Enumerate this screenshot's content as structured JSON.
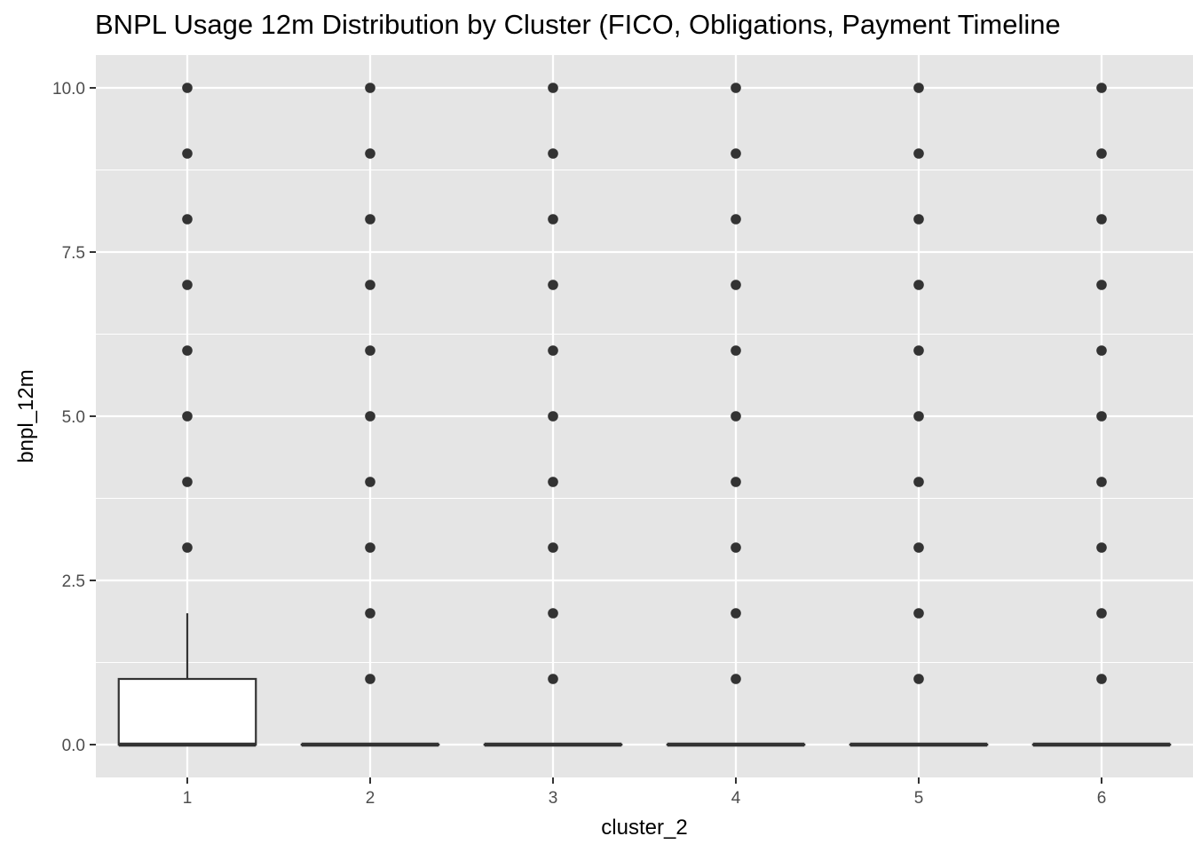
{
  "chart_data": {
    "type": "box",
    "title": "BNPL Usage 12m Distribution by Cluster (FICO, Obligations, Payment Timeline",
    "xlabel": "cluster_2",
    "ylabel": "bnpl_12m",
    "categories": [
      "1",
      "2",
      "3",
      "4",
      "5",
      "6"
    ],
    "ylim": [
      -0.5,
      10.5
    ],
    "yticks": [
      0,
      2.5,
      5,
      7.5,
      10
    ],
    "ytick_labels": [
      "0.0",
      "2.5",
      "5.0",
      "7.5",
      "10.0"
    ],
    "grid": true,
    "legend": "none",
    "colors": {
      "panel": "#e5e5e5",
      "grid": "#ffffff",
      "ink": "#333333",
      "box_fill": "#ffffff"
    },
    "boxes": [
      {
        "category": "1",
        "q1": 0,
        "median": 0,
        "q3": 1,
        "whisker_low": 0,
        "whisker_high": 2,
        "outliers": [
          3,
          4,
          5,
          6,
          7,
          8,
          9,
          10
        ]
      },
      {
        "category": "2",
        "q1": 0,
        "median": 0,
        "q3": 0,
        "whisker_low": 0,
        "whisker_high": 0,
        "outliers": [
          1,
          2,
          3,
          4,
          5,
          6,
          7,
          8,
          9,
          10
        ]
      },
      {
        "category": "3",
        "q1": 0,
        "median": 0,
        "q3": 0,
        "whisker_low": 0,
        "whisker_high": 0,
        "outliers": [
          1,
          2,
          3,
          4,
          5,
          6,
          7,
          8,
          9,
          10
        ]
      },
      {
        "category": "4",
        "q1": 0,
        "median": 0,
        "q3": 0,
        "whisker_low": 0,
        "whisker_high": 0,
        "outliers": [
          1,
          2,
          3,
          4,
          5,
          6,
          7,
          8,
          9,
          10
        ]
      },
      {
        "category": "5",
        "q1": 0,
        "median": 0,
        "q3": 0,
        "whisker_low": 0,
        "whisker_high": 0,
        "outliers": [
          1,
          2,
          3,
          4,
          5,
          6,
          7,
          8,
          9,
          10
        ]
      },
      {
        "category": "6",
        "q1": 0,
        "median": 0,
        "q3": 0,
        "whisker_low": 0,
        "whisker_high": 0,
        "outliers": [
          1,
          2,
          3,
          4,
          5,
          6,
          7,
          8,
          9,
          10
        ]
      }
    ]
  }
}
